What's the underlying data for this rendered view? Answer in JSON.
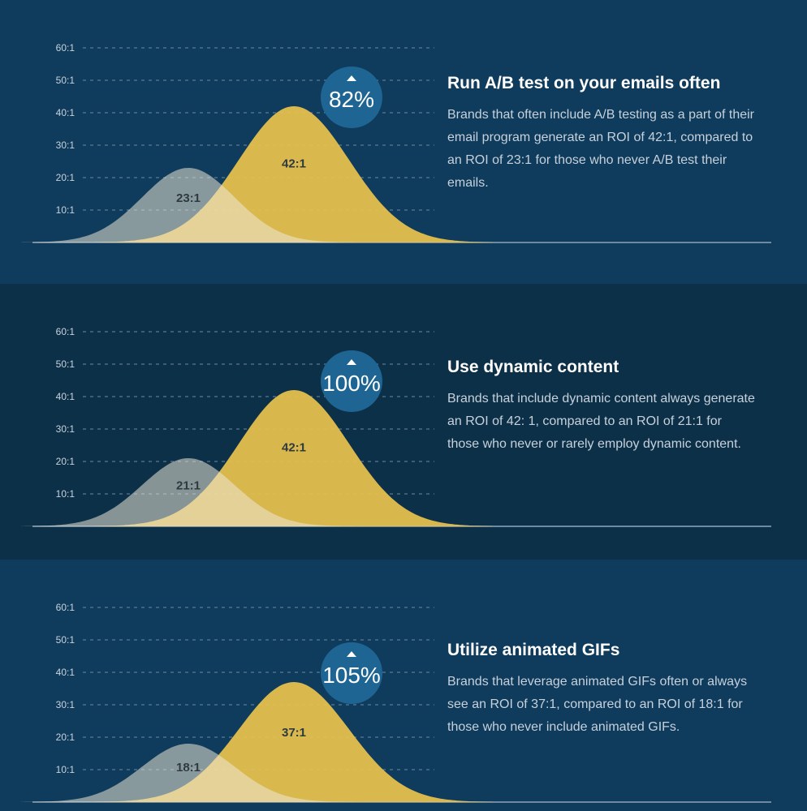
{
  "colors": {
    "accent_gold": "#e8c24e",
    "pale": "#ece7d6",
    "badge": "#1f6593"
  },
  "icons": {
    "badge_arrow": "up-triangle-icon"
  },
  "chart_data": [
    {
      "type": "area",
      "y_ticks": [
        "10:1",
        "20:1",
        "30:1",
        "40:1",
        "50:1",
        "60:1"
      ],
      "ylim": [
        0,
        65
      ],
      "grid": true,
      "series": [
        {
          "peak": 23,
          "label": "23:1"
        },
        {
          "peak": 42,
          "label": "42:1"
        }
      ],
      "badge": "82%",
      "heading": "Run A/B test on your emails often",
      "description": "Brands that often include A/B testing as a part of their email program generate an ROI of 42:1, compared to an ROI of 23:1 for those who never A/B test their emails."
    },
    {
      "type": "area",
      "y_ticks": [
        "10:1",
        "20:1",
        "30:1",
        "40:1",
        "50:1",
        "60:1"
      ],
      "ylim": [
        0,
        65
      ],
      "grid": true,
      "series": [
        {
          "peak": 21,
          "label": "21:1"
        },
        {
          "peak": 42,
          "label": "42:1"
        }
      ],
      "badge": "100%",
      "heading": "Use dynamic content",
      "description": "Brands that include dynamic content always generate an ROI of 42: 1, compared to an ROI of 21:1 for those who never or rarely employ dynamic content."
    },
    {
      "type": "area",
      "y_ticks": [
        "10:1",
        "20:1",
        "30:1",
        "40:1",
        "50:1",
        "60:1"
      ],
      "ylim": [
        0,
        65
      ],
      "grid": true,
      "series": [
        {
          "peak": 18,
          "label": "18:1"
        },
        {
          "peak": 37,
          "label": "37:1"
        }
      ],
      "badge": "105%",
      "heading": "Utilize animated GIFs",
      "description": "Brands that leverage animated GIFs often or always see an ROI of 37:1, compared to an ROI of 18:1 for those who never include animated GIFs."
    }
  ]
}
